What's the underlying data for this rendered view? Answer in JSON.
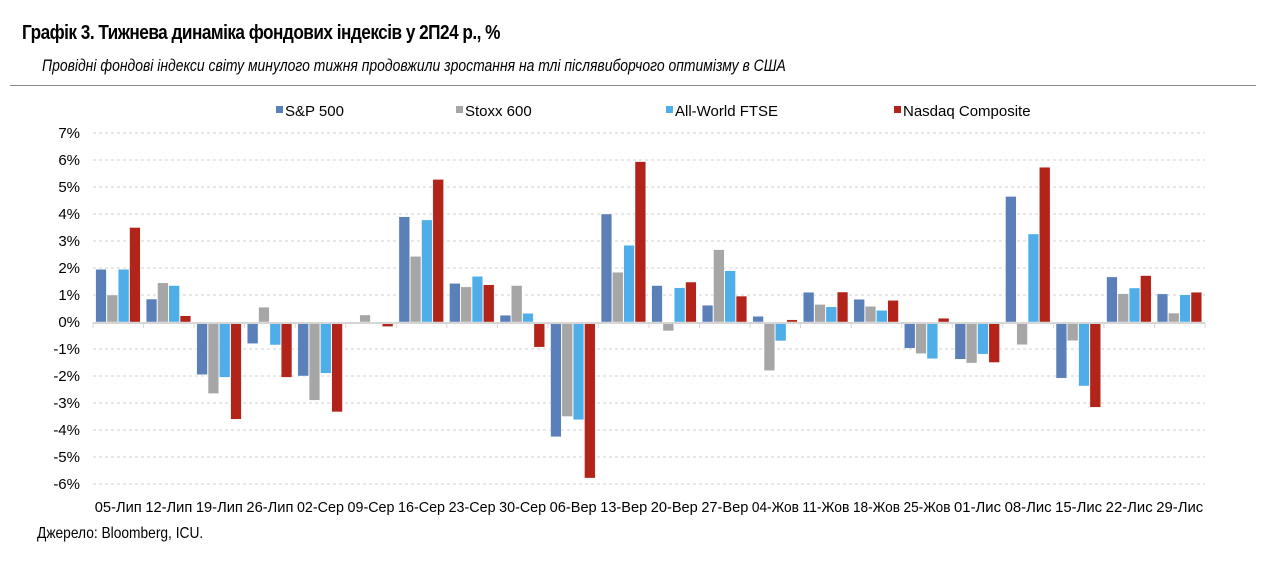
{
  "header": {
    "title": "Графік 3. Тижнева динаміка фондових індексів у 2П24 р., %",
    "subtitle": "Провідні фондові індекси світу минулого тижня продовжили зростання на тлі післявиборчого оптимізму в США"
  },
  "footer": {
    "source": "Джерело: Bloomberg, ICU."
  },
  "chart_data": {
    "type": "bar",
    "title": "Графік 3. Тижнева динаміка фондових індексів у 2П24 р., %",
    "xlabel": "",
    "ylabel": "",
    "ylim": [
      -6,
      7
    ],
    "y_ticks": [
      7,
      6,
      5,
      4,
      3,
      2,
      1,
      0,
      -1,
      -2,
      -3,
      -4,
      -5,
      -6
    ],
    "y_tick_labels": [
      "7%",
      "6%",
      "5%",
      "4%",
      "3%",
      "2%",
      "1%",
      "0%",
      "-1%",
      "-2%",
      "-3%",
      "-4%",
      "-5%",
      "-6%"
    ],
    "grid": true,
    "legend_position": "top",
    "categories": [
      "05-Лип",
      "12-Лип",
      "19-Лип",
      "26-Лип",
      "02-Сер",
      "09-Сер",
      "16-Сер",
      "23-Сер",
      "30-Сер",
      "06-Вер",
      "13-Вер",
      "20-Вер",
      "27-Вер",
      "04-Жов",
      "11-Жов",
      "18-Жов",
      "25-Жов",
      "01-Лис",
      "08-Лис",
      "15-Лис",
      "22-Лис",
      "29-Лис"
    ],
    "series": [
      {
        "name": "S&P 500",
        "color": "#5b7fb8",
        "values": [
          1.95,
          0.85,
          -1.95,
          -0.8,
          -2.0,
          0.0,
          3.9,
          1.43,
          0.25,
          -4.25,
          4.0,
          1.35,
          0.62,
          0.21,
          1.1,
          0.84,
          -0.97,
          -1.38,
          4.65,
          -2.08,
          1.67,
          1.04
        ]
      },
      {
        "name": "Stoxx 600",
        "color": "#a6a6a6",
        "values": [
          1.0,
          1.45,
          -2.65,
          0.55,
          -2.9,
          0.26,
          2.43,
          1.3,
          1.35,
          -3.5,
          1.84,
          -0.33,
          2.68,
          -1.8,
          0.65,
          0.58,
          -1.17,
          -1.52,
          -0.84,
          -0.69,
          1.05,
          0.33
        ]
      },
      {
        "name": "All-World FTSE",
        "color": "#4faee8",
        "values": [
          1.95,
          1.35,
          -2.05,
          -0.85,
          -1.9,
          0.0,
          3.78,
          1.69,
          0.32,
          -3.62,
          2.84,
          1.27,
          1.9,
          -0.7,
          0.56,
          0.43,
          -1.36,
          -1.19,
          3.26,
          -2.37,
          1.26,
          1.01
        ]
      },
      {
        "name": "Nasdaq Composite",
        "color": "#b22319",
        "values": [
          3.5,
          0.23,
          -3.6,
          -2.05,
          -3.33,
          -0.17,
          5.28,
          1.38,
          -0.93,
          -5.78,
          5.94,
          1.48,
          0.96,
          0.08,
          1.11,
          0.8,
          0.14,
          -1.5,
          5.73,
          -3.16,
          1.72,
          1.1
        ]
      }
    ]
  }
}
